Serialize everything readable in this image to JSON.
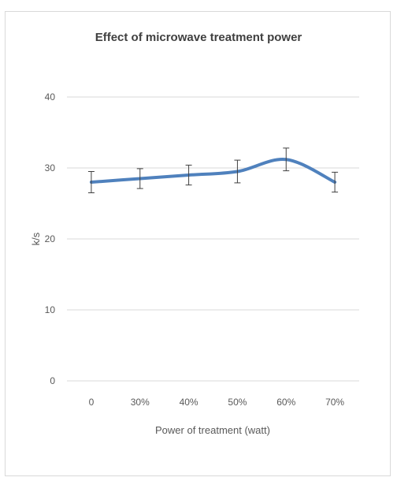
{
  "chart_data": {
    "type": "line",
    "title": "Effect of microwave treatment power",
    "xlabel": "Power of treatment (watt)",
    "ylabel": "k/s",
    "categories": [
      "0",
      "30%",
      "40%",
      "50%",
      "60%",
      "70%"
    ],
    "series": [
      {
        "values": [
          28,
          28.5,
          29,
          29.5,
          31.2,
          28
        ],
        "error": [
          1.5,
          1.4,
          1.4,
          1.6,
          1.6,
          1.4
        ]
      }
    ],
    "ylim": [
      0,
      40
    ],
    "yticks": [
      "0",
      "10",
      "20",
      "30",
      "40"
    ],
    "grid": true,
    "legend": "none",
    "smooth": true,
    "colors": {
      "line": "#4f81bd",
      "grid": "#d9d9d9",
      "error_bar": "#404040"
    }
  }
}
